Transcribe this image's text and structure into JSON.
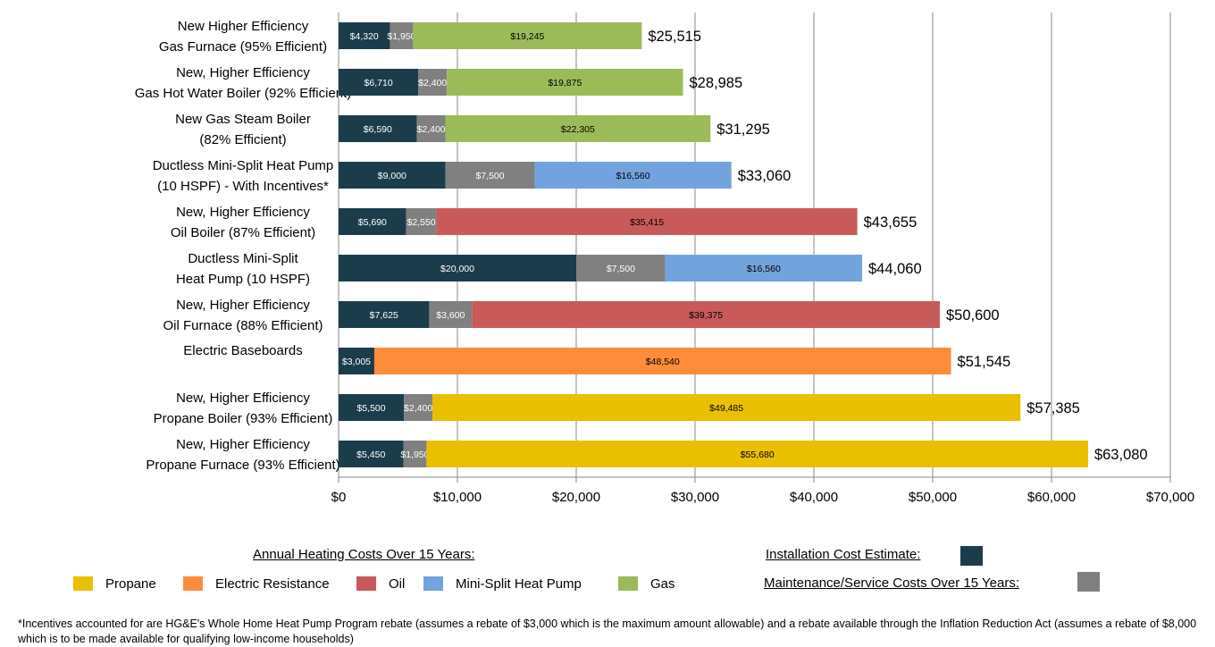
{
  "chart_data": {
    "type": "bar",
    "orientation": "horizontal",
    "stacked": true,
    "categories": [
      [
        "New Higher Efficiency",
        "Gas Furnace (95% Efficient)"
      ],
      [
        "New, Higher Efficiency",
        "Gas Hot Water Boiler (92% Efficient)"
      ],
      [
        "New Gas Steam Boiler",
        "(82% Efficient)"
      ],
      [
        "Ductless Mini-Split Heat Pump",
        "(10 HSPF) - With Incentives*"
      ],
      [
        "New, Higher Efficiency",
        "Oil Boiler (87% Efficient)"
      ],
      [
        "Ductless Mini-Split",
        "Heat Pump (10 HSPF)"
      ],
      [
        "New, Higher Efficiency",
        "Oil Furnace (88% Efficient)"
      ],
      [
        "Electric Baseboards"
      ],
      [
        "New, Higher Efficiency",
        "Propane Boiler (93% Efficient)"
      ],
      [
        "New, Higher Efficiency",
        "Propane Furnace (93% Efficient)"
      ]
    ],
    "rows": [
      {
        "install": 4320,
        "install_label": "$4,320",
        "maint": 1950,
        "maint_label": "$1,950",
        "fuel": "gas",
        "annual": 19245,
        "annual_label": "$19,245",
        "total_label": "$25,515"
      },
      {
        "install": 6710,
        "install_label": "$6,710",
        "maint": 2400,
        "maint_label": "$2,400",
        "fuel": "gas",
        "annual": 19875,
        "annual_label": "$19,875",
        "total_label": "$28,985"
      },
      {
        "install": 6590,
        "install_label": "$6,590",
        "maint": 2400,
        "maint_label": "$2,400",
        "fuel": "gas",
        "annual": 22305,
        "annual_label": "$22,305",
        "total_label": "$31,295"
      },
      {
        "install": 9000,
        "install_label": "$9,000",
        "maint": 7500,
        "maint_label": "$7,500",
        "fuel": "heatpump",
        "annual": 16560,
        "annual_label": "$16,560",
        "total_label": "$33,060"
      },
      {
        "install": 5690,
        "install_label": "$5,690",
        "maint": 2550,
        "maint_label": "$2,550",
        "fuel": "oil",
        "annual": 35415,
        "annual_label": "$35,415",
        "total_label": "$43,655"
      },
      {
        "install": 20000,
        "install_label": "$20,000",
        "maint": 7500,
        "maint_label": "$7,500",
        "fuel": "heatpump",
        "annual": 16560,
        "annual_label": "$16,560",
        "total_label": "$44,060"
      },
      {
        "install": 7625,
        "install_label": "$7,625",
        "maint": 3600,
        "maint_label": "$3,600",
        "fuel": "oil",
        "annual": 39375,
        "annual_label": "$39,375",
        "total_label": "$50,600"
      },
      {
        "install": 3005,
        "install_label": "$3,005",
        "maint": 0,
        "maint_label": "",
        "fuel": "electric",
        "annual": 48540,
        "annual_label": "$48,540",
        "total_label": "$51,545"
      },
      {
        "install": 5500,
        "install_label": "$5,500",
        "maint": 2400,
        "maint_label": "$2,400",
        "fuel": "propane",
        "annual": 49485,
        "annual_label": "$49,485",
        "total_label": "$57,385"
      },
      {
        "install": 5450,
        "install_label": "$5,450",
        "maint": 1950,
        "maint_label": "$1,950",
        "fuel": "propane",
        "annual": 55680,
        "annual_label": "$55,680",
        "total_label": "$63,080"
      }
    ],
    "xlim": [
      0,
      70000
    ],
    "xticks": [
      0,
      10000,
      20000,
      30000,
      40000,
      50000,
      60000,
      70000
    ],
    "xtick_labels": [
      "$0",
      "$10,000",
      "$20,000",
      "$30,000",
      "$40,000",
      "$50,000",
      "$60,000",
      "$70,000"
    ],
    "grid": true,
    "legend_position": "bottom",
    "colors": {
      "install": "#1b3d4b",
      "maint": "#808080",
      "propane": "#e8c000",
      "electric": "#ff8c3a",
      "oil": "#c85a5a",
      "heatpump": "#73a3dd",
      "gas": "#9bbb59"
    }
  },
  "legend": {
    "annual_title": "Annual Heating Costs Over 15 Years:",
    "install_title": "Installation Cost Estimate:",
    "maint_title": "Maintenance/Service Costs Over 15 Years:",
    "items": [
      {
        "label": "Propane",
        "color": "#e8c000"
      },
      {
        "label": "Electric Resistance",
        "color": "#ff8c3a"
      },
      {
        "label": "Oil",
        "color": "#c85a5a"
      },
      {
        "label": "Mini-Split Heat Pump",
        "color": "#73a3dd"
      },
      {
        "label": "Gas",
        "color": "#9bbb59"
      }
    ]
  },
  "footnote": "*Incentives accounted for are HG&E's Whole Home Heat Pump Program rebate (assumes a rebate of $3,000 which is the maximum amount allowable) and a rebate available through the Inflation Reduction Act (assumes a rebate of $8,000 which is to be made available  for qualifying low-income households)"
}
